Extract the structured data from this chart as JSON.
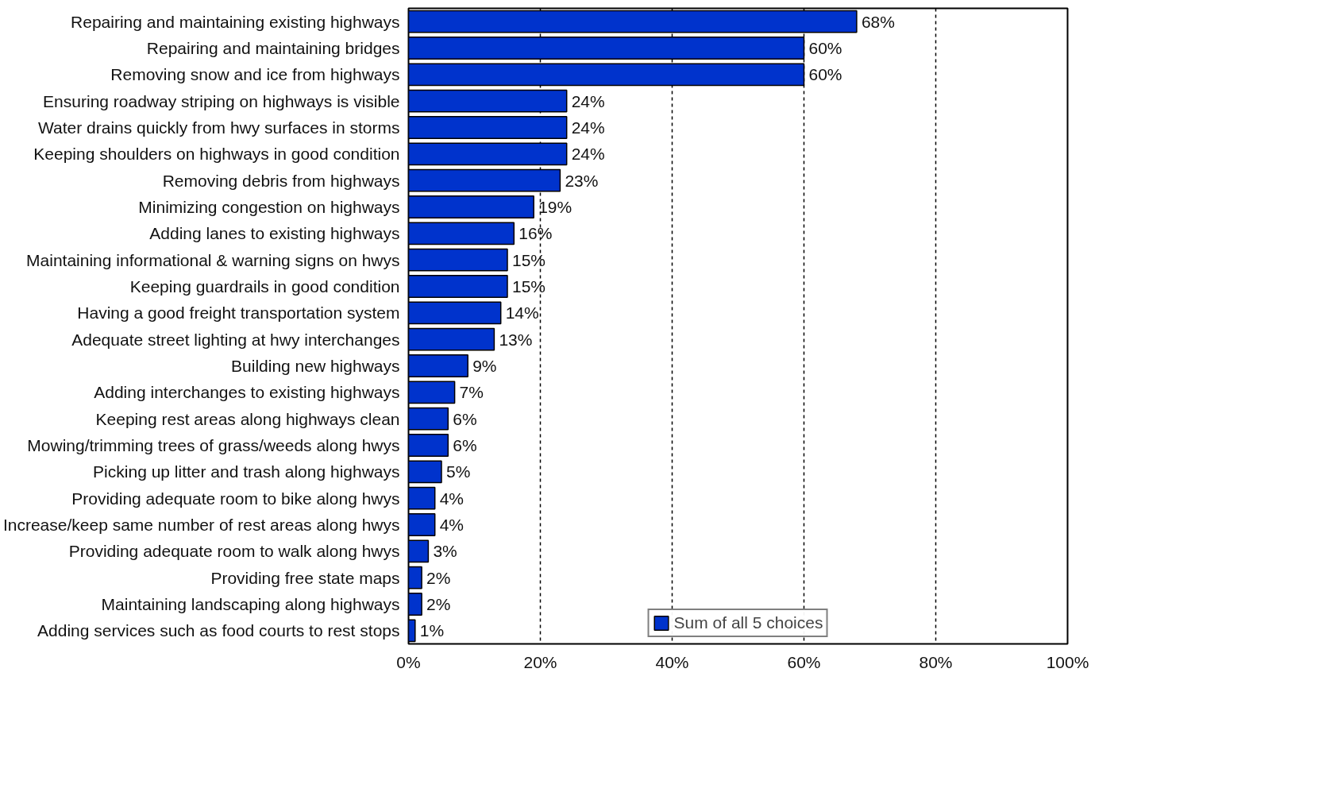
{
  "chart_data": {
    "type": "bar",
    "orientation": "horizontal",
    "categories": [
      "Repairing and maintaining existing highways",
      "Repairing and maintaining bridges",
      "Removing snow and ice from highways",
      "Ensuring roadway striping on highways is visible",
      "Water drains quickly from hwy surfaces in storms",
      "Keeping shoulders on highways in good condition",
      "Removing debris from highways",
      "Minimizing congestion on highways",
      "Adding lanes to existing highways",
      "Maintaining informational & warning signs on hwys",
      "Keeping guardrails in good condition",
      "Having a good freight transportation system",
      "Adequate street lighting at hwy interchanges",
      "Building new highways",
      "Adding interchanges to existing highways",
      "Keeping rest areas along highways clean",
      "Mowing/trimming trees of grass/weeds along hwys",
      "Picking up litter and trash along highways",
      "Providing adequate room to bike along hwys",
      "Increase/keep same number of rest areas along hwys",
      "Providing adequate room to walk along hwys",
      "Providing free state maps",
      "Maintaining landscaping along highways",
      "Adding services such as food courts to rest stops"
    ],
    "series": [
      {
        "name": "Sum of all 5 choices",
        "color": "#0033cc",
        "values": [
          68,
          60,
          60,
          24,
          24,
          24,
          23,
          19,
          16,
          15,
          15,
          14,
          13,
          9,
          7,
          6,
          6,
          5,
          4,
          4,
          3,
          2,
          2,
          1
        ],
        "value_labels": [
          "68%",
          "60%",
          "60%",
          "24%",
          "24%",
          "24%",
          "23%",
          "19%",
          "16%",
          "15%",
          "15%",
          "14%",
          "13%",
          "9%",
          "7%",
          "6%",
          "6%",
          "5%",
          "4%",
          "4%",
          "3%",
          "2%",
          "2%",
          "1%"
        ]
      }
    ],
    "xlim": [
      0,
      100
    ],
    "xticks": [
      {
        "value": 0,
        "label": "0%"
      },
      {
        "value": 20,
        "label": "20%"
      },
      {
        "value": 40,
        "label": "40%"
      },
      {
        "value": 60,
        "label": "60%"
      },
      {
        "value": 80,
        "label": "80%"
      },
      {
        "value": 100,
        "label": "100%"
      }
    ],
    "grid": "x",
    "legend": "bottom"
  }
}
